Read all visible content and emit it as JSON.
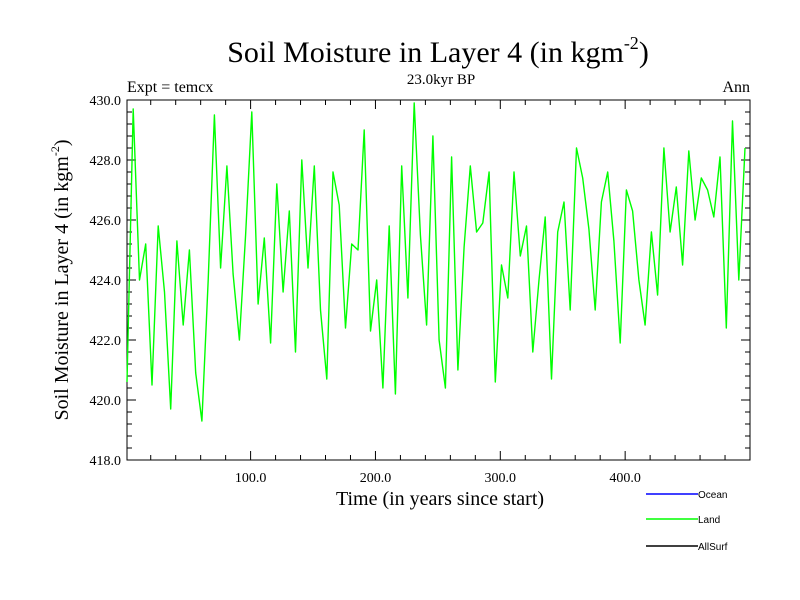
{
  "chart_data": {
    "type": "line",
    "title_main": "Soil Moisture in Layer 4 (in kgm",
    "title_sup": "-2",
    "title_close": ")",
    "subtitle": "23.0kyr BP",
    "left_label": "Expt = temcx",
    "right_label": "Ann",
    "xlabel": "Time (in years since start)",
    "ylabel_main": "Soil Moisture in Layer 4 (in kgm",
    "ylabel_sup": "-2",
    "ylabel_close": ")",
    "xlim": [
      1,
      500
    ],
    "ylim": [
      418.0,
      430.0
    ],
    "x_ticks": [
      100,
      200,
      300,
      400
    ],
    "x_tick_labels": [
      "100.0",
      "200.0",
      "300.0",
      "400.0"
    ],
    "y_ticks": [
      418,
      420,
      422,
      424,
      426,
      428,
      430
    ],
    "y_tick_labels": [
      "418.0",
      "420.0",
      "422.0",
      "424.0",
      "426.0",
      "428.0",
      "430.0"
    ],
    "grid": false,
    "legend_position": "bottom-right",
    "legend": [
      {
        "name": "Ocean",
        "color": "#0000ff"
      },
      {
        "name": "Land",
        "color": "#00ff00"
      },
      {
        "name": "AllSurf",
        "color": "#000000"
      }
    ],
    "series": [
      {
        "name": "Land",
        "color": "#00ff00",
        "x_start": 1,
        "x_step": 5,
        "values": [
          420.6,
          429.7,
          424.0,
          425.2,
          420.5,
          425.8,
          423.6,
          419.7,
          425.3,
          422.5,
          425.0,
          420.9,
          419.3,
          424.0,
          429.5,
          424.4,
          427.8,
          424.2,
          422.0,
          425.5,
          429.6,
          423.2,
          425.4,
          421.9,
          427.2,
          423.6,
          426.3,
          421.6,
          428.0,
          424.4,
          427.8,
          423.0,
          420.7,
          427.6,
          426.5,
          422.4,
          425.2,
          425.0,
          429.0,
          422.3,
          424.0,
          420.4,
          425.8,
          420.2,
          427.8,
          423.4,
          429.9,
          425.5,
          422.5,
          428.8,
          422.0,
          420.4,
          428.1,
          421.0,
          425.1,
          427.8,
          425.6,
          425.9,
          427.6,
          420.6,
          424.5,
          423.4,
          427.6,
          424.8,
          425.8,
          421.6,
          424.0,
          426.1,
          420.7,
          425.6,
          426.6,
          423.0,
          428.4,
          427.4,
          425.7,
          423.0,
          426.6,
          427.6,
          425.3,
          421.9,
          427.0,
          426.3,
          424.0,
          422.5,
          425.6,
          423.5,
          428.4,
          425.6,
          427.1,
          424.5,
          428.3,
          426.0,
          427.4,
          427.0,
          426.1,
          428.1,
          422.4,
          429.3,
          424.0,
          428.4
        ]
      },
      {
        "name": "Ocean",
        "color": "#0000ff",
        "values": []
      },
      {
        "name": "AllSurf",
        "color": "#000000",
        "values": []
      }
    ]
  }
}
